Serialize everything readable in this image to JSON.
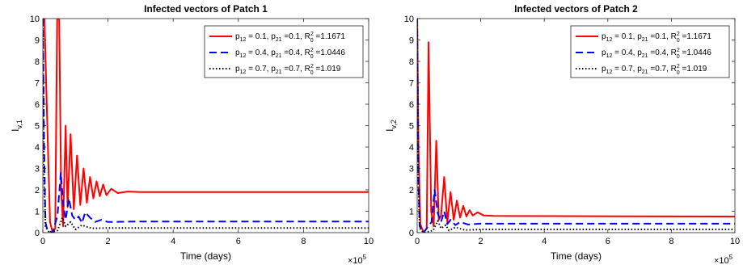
{
  "chart_data": [
    {
      "type": "line",
      "title": "Infected vectors of Patch 1",
      "xlabel": "Time (days)",
      "ylabel": {
        "main": "I",
        "sub": "v,1"
      },
      "x_multiplier": "×10",
      "x_multiplier_exp": "5",
      "xlim": [
        0,
        10
      ],
      "ylim": [
        0,
        10
      ],
      "xticks": [
        "0",
        "2",
        "4",
        "6",
        "8",
        "10"
      ],
      "yticks": [
        "0",
        "1",
        "2",
        "3",
        "4",
        "5",
        "6",
        "7",
        "8",
        "9",
        "10"
      ],
      "legend_position": "top-right",
      "series": [
        {
          "p12": "0.1",
          "p21": "0.1",
          "r0sq": "1.1671",
          "color": "#ff0000",
          "style": "solid",
          "points": [
            [
              0,
              10
            ],
            [
              0.05,
              10
            ],
            [
              0.12,
              6
            ],
            [
              0.22,
              0.5
            ],
            [
              0.3,
              0
            ],
            [
              0.38,
              0.2
            ],
            [
              0.44,
              10
            ],
            [
              0.5,
              10
            ],
            [
              0.56,
              2
            ],
            [
              0.62,
              0.3
            ],
            [
              0.7,
              5
            ],
            [
              0.76,
              1.2
            ],
            [
              0.85,
              4.6
            ],
            [
              0.95,
              1.1
            ],
            [
              1.05,
              3.6
            ],
            [
              1.15,
              1.3
            ],
            [
              1.25,
              3.0
            ],
            [
              1.35,
              1.4
            ],
            [
              1.45,
              2.6
            ],
            [
              1.55,
              1.6
            ],
            [
              1.65,
              2.4
            ],
            [
              1.75,
              1.7
            ],
            [
              1.85,
              2.25
            ],
            [
              1.95,
              1.75
            ],
            [
              2.1,
              2.05
            ],
            [
              2.3,
              1.85
            ],
            [
              2.6,
              1.92
            ],
            [
              3,
              1.9
            ],
            [
              10,
              1.9
            ]
          ]
        },
        {
          "p12": "0.4",
          "p21": "0.4",
          "r0sq": "1.0446",
          "color": "#0000ff",
          "style": "dashed",
          "points": [
            [
              0,
              10
            ],
            [
              0.04,
              4
            ],
            [
              0.08,
              0.5
            ],
            [
              0.14,
              0.1
            ],
            [
              0.3,
              0
            ],
            [
              0.45,
              0.8
            ],
            [
              0.55,
              2.8
            ],
            [
              0.62,
              1.4
            ],
            [
              0.7,
              0.6
            ],
            [
              0.8,
              1.6
            ],
            [
              0.9,
              0.8
            ],
            [
              1.0,
              0.6
            ],
            [
              1.1,
              0.75
            ],
            [
              1.2,
              0.45
            ],
            [
              1.3,
              0.95
            ],
            [
              1.45,
              0.7
            ],
            [
              1.6,
              0.5
            ],
            [
              1.8,
              0.6
            ],
            [
              2.0,
              0.5
            ],
            [
              3,
              0.52
            ],
            [
              10,
              0.52
            ]
          ]
        },
        {
          "p12": "0.7",
          "p21": "0.7",
          "r0sq": "1.019",
          "color": "#000000",
          "style": "dotted",
          "points": [
            [
              0,
              10
            ],
            [
              0.03,
              3
            ],
            [
              0.08,
              0.3
            ],
            [
              0.2,
              0
            ],
            [
              0.45,
              0.1
            ],
            [
              0.6,
              0.7
            ],
            [
              0.7,
              0.3
            ],
            [
              0.85,
              0.5
            ],
            [
              1.0,
              0.15
            ],
            [
              1.2,
              0.35
            ],
            [
              1.5,
              0.2
            ],
            [
              2.0,
              0.22
            ],
            [
              10,
              0.22
            ]
          ]
        }
      ]
    },
    {
      "type": "line",
      "title": "Infected vectors of Patch 2",
      "xlabel": "Time (days)",
      "ylabel": {
        "main": "I",
        "sub": "v,2"
      },
      "x_multiplier": "×10",
      "x_multiplier_exp": "5",
      "xlim": [
        0,
        10
      ],
      "ylim": [
        0,
        10
      ],
      "xticks": [
        "0",
        "2",
        "4",
        "6",
        "8",
        "10"
      ],
      "yticks": [
        "0",
        "1",
        "2",
        "3",
        "4",
        "5",
        "6",
        "7",
        "8",
        "9",
        "10"
      ],
      "legend_position": "top-right",
      "series": [
        {
          "p12": "0.1",
          "p21": "0.1",
          "r0sq": "1.1671",
          "color": "#ff0000",
          "style": "solid",
          "points": [
            [
              0,
              10
            ],
            [
              0.04,
              4
            ],
            [
              0.1,
              0.4
            ],
            [
              0.2,
              0
            ],
            [
              0.3,
              0.2
            ],
            [
              0.36,
              8.9
            ],
            [
              0.44,
              1
            ],
            [
              0.52,
              0.3
            ],
            [
              0.6,
              4.3
            ],
            [
              0.68,
              0.6
            ],
            [
              0.75,
              0.8
            ],
            [
              0.85,
              2.6
            ],
            [
              0.95,
              0.5
            ],
            [
              1.05,
              1.9
            ],
            [
              1.15,
              0.6
            ],
            [
              1.25,
              1.5
            ],
            [
              1.35,
              0.7
            ],
            [
              1.45,
              1.25
            ],
            [
              1.55,
              0.75
            ],
            [
              1.65,
              1.05
            ],
            [
              1.75,
              0.8
            ],
            [
              1.9,
              0.95
            ],
            [
              2.1,
              0.8
            ],
            [
              2.4,
              0.78
            ],
            [
              10,
              0.75
            ]
          ]
        },
        {
          "p12": "0.4",
          "p21": "0.4",
          "r0sq": "1.0446",
          "color": "#0000ff",
          "style": "dashed",
          "points": [
            [
              0,
              10
            ],
            [
              0.03,
              3
            ],
            [
              0.08,
              0.3
            ],
            [
              0.2,
              0
            ],
            [
              0.45,
              0.5
            ],
            [
              0.55,
              2.0
            ],
            [
              0.65,
              0.9
            ],
            [
              0.75,
              0.5
            ],
            [
              0.85,
              1.0
            ],
            [
              0.95,
              0.4
            ],
            [
              1.05,
              0.6
            ],
            [
              1.2,
              0.35
            ],
            [
              1.35,
              0.5
            ],
            [
              1.6,
              0.38
            ],
            [
              2.0,
              0.42
            ],
            [
              10,
              0.42
            ]
          ]
        },
        {
          "p12": "0.7",
          "p21": "0.7",
          "r0sq": "1.019",
          "color": "#000000",
          "style": "dotted",
          "points": [
            [
              0,
              10
            ],
            [
              0.03,
              2.5
            ],
            [
              0.08,
              0.2
            ],
            [
              0.2,
              0
            ],
            [
              0.5,
              0.1
            ],
            [
              0.65,
              0.55
            ],
            [
              0.75,
              0.2
            ],
            [
              0.9,
              0.35
            ],
            [
              1.0,
              0.1
            ],
            [
              1.2,
              0.25
            ],
            [
              1.5,
              0.12
            ],
            [
              2.0,
              0.15
            ],
            [
              10,
              0.15
            ]
          ]
        }
      ]
    }
  ]
}
